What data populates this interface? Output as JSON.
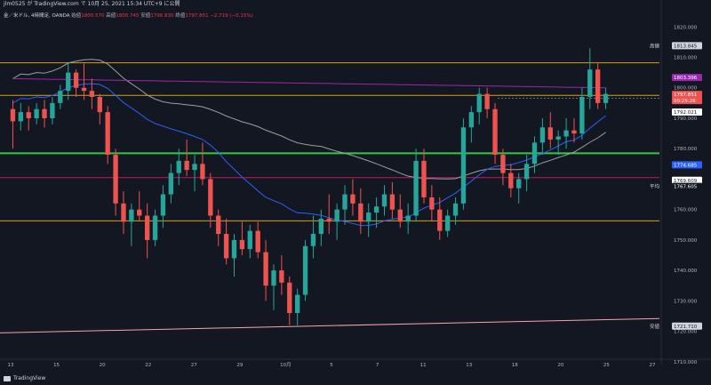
{
  "header": {
    "title": "jlm0525 が TradingView.com で 10月 25, 2021 15:34 UTC+9 に公開"
  },
  "infobar": {
    "symbol": "金／米ドル, 4時間足, OANDA",
    "open_label": "始値",
    "open_value": "1800.570",
    "high_label": "高値",
    "high_value": "1800.745",
    "low_label": "安値",
    "low_value": "1796.830",
    "close_label": "終値",
    "close_value": "1797.851",
    "change": "−2.719 (−0.15%)"
  },
  "branding": {
    "logo_text": "TradingView"
  },
  "colors": {
    "background": "#131722",
    "up": "#26a69a",
    "down": "#ef5350",
    "green_level": "#2ecc40",
    "orange_level": "#d4a017",
    "purple_ma": "#9c27b0",
    "blue_ma": "#2962ff",
    "grey_ma": "#9e9e9e",
    "red_level": "#c2185b",
    "pink_trend": "#f8a5a5"
  },
  "chart_data": {
    "type": "candlestick",
    "x_tick_labels": [
      "13",
      "15",
      "20",
      "22",
      "27",
      "29",
      "10月",
      "5",
      "7",
      "11",
      "13",
      "18",
      "20",
      "25",
      "27"
    ],
    "y_tick_labels": [
      "1820.000",
      "1810.000",
      "1800.000",
      "1790.000",
      "1780.000",
      "1770.000",
      "1760.000",
      "1750.000",
      "1740.000",
      "1730.000",
      "1720.000",
      "1710.000"
    ],
    "ylim": [
      1712,
      1823
    ],
    "price_tags": [
      {
        "label": "高値",
        "value": "1813.845",
        "color": "#131722",
        "bg": "#d1d4dc"
      },
      {
        "label": "",
        "value": "1803.396",
        "color": "#ffffff",
        "bg": "#9c27b0"
      },
      {
        "label": "",
        "value": "1797.851",
        "color": "#ffffff",
        "bg": "#ef5350"
      },
      {
        "label": "",
        "value": "00:25:26",
        "color": "#ffffff",
        "bg": "#ef5350"
      },
      {
        "label": "",
        "value": "1792.021",
        "color": "#131722",
        "bg": "#ffffff"
      },
      {
        "label": "",
        "value": "1774.685",
        "color": "#ffffff",
        "bg": "#2962ff"
      },
      {
        "label": "",
        "value": "1769.609",
        "color": "#131722",
        "bg": "#ffffff"
      },
      {
        "label": "平均",
        "value": "1767.605",
        "color": "#ffffff",
        "bg": "#131722"
      },
      {
        "label": "安値",
        "value": "1721.710",
        "color": "#131722",
        "bg": "#d1d4dc"
      }
    ],
    "levels": [
      {
        "name": "orange-top",
        "price": 1808.2,
        "color": "#d4a017"
      },
      {
        "name": "orange-mid",
        "price": 1797.5,
        "color": "#d4a017"
      },
      {
        "name": "green-support",
        "price": 1778.5,
        "color": "#2ecc40"
      },
      {
        "name": "red-level",
        "price": 1770.5,
        "color": "#c2185b"
      },
      {
        "name": "orange-bottom",
        "price": 1756.3,
        "color": "#d4a017"
      }
    ],
    "candles": [
      [
        1793,
        1796,
        1780,
        1789
      ],
      [
        1789,
        1795,
        1786,
        1792
      ],
      [
        1792,
        1794,
        1786,
        1790
      ],
      [
        1790,
        1795,
        1788,
        1793
      ],
      [
        1793,
        1796,
        1787,
        1790
      ],
      [
        1790,
        1797,
        1788,
        1795
      ],
      [
        1795,
        1801,
        1793,
        1799
      ],
      [
        1799,
        1808,
        1796,
        1805
      ],
      [
        1805,
        1806,
        1797,
        1800
      ],
      [
        1800,
        1808,
        1796,
        1799
      ],
      [
        1799,
        1803,
        1793,
        1797
      ],
      [
        1797,
        1798,
        1788,
        1792
      ],
      [
        1792,
        1794,
        1775,
        1778
      ],
      [
        1778,
        1780,
        1758,
        1762
      ],
      [
        1762,
        1766,
        1752,
        1756
      ],
      [
        1756,
        1762,
        1748,
        1760
      ],
      [
        1760,
        1766,
        1756,
        1758
      ],
      [
        1758,
        1762,
        1744,
        1750
      ],
      [
        1750,
        1760,
        1748,
        1758
      ],
      [
        1758,
        1768,
        1754,
        1765
      ],
      [
        1765,
        1775,
        1762,
        1772
      ],
      [
        1772,
        1780,
        1768,
        1776
      ],
      [
        1776,
        1783,
        1771,
        1773
      ],
      [
        1773,
        1778,
        1766,
        1775
      ],
      [
        1775,
        1782,
        1768,
        1770
      ],
      [
        1770,
        1772,
        1754,
        1758
      ],
      [
        1758,
        1760,
        1748,
        1752
      ],
      [
        1752,
        1757,
        1742,
        1744
      ],
      [
        1744,
        1752,
        1738,
        1750
      ],
      [
        1750,
        1756,
        1745,
        1747
      ],
      [
        1747,
        1755,
        1744,
        1753
      ],
      [
        1753,
        1756,
        1744,
        1746
      ],
      [
        1746,
        1750,
        1730,
        1735
      ],
      [
        1735,
        1742,
        1727,
        1740
      ],
      [
        1740,
        1745,
        1732,
        1736
      ],
      [
        1736,
        1738,
        1722,
        1726
      ],
      [
        1726,
        1734,
        1722,
        1732
      ],
      [
        1732,
        1750,
        1730,
        1748
      ],
      [
        1748,
        1758,
        1744,
        1752
      ],
      [
        1752,
        1760,
        1748,
        1757
      ],
      [
        1757,
        1765,
        1752,
        1756
      ],
      [
        1756,
        1762,
        1750,
        1760
      ],
      [
        1760,
        1768,
        1755,
        1765
      ],
      [
        1765,
        1770,
        1758,
        1762
      ],
      [
        1762,
        1767,
        1752,
        1756
      ],
      [
        1756,
        1762,
        1751,
        1759
      ],
      [
        1759,
        1764,
        1754,
        1761
      ],
      [
        1761,
        1768,
        1758,
        1765
      ],
      [
        1765,
        1769,
        1757,
        1760
      ],
      [
        1760,
        1765,
        1754,
        1756
      ],
      [
        1756,
        1762,
        1752,
        1758
      ],
      [
        1758,
        1780,
        1756,
        1776
      ],
      [
        1776,
        1780,
        1762,
        1764
      ],
      [
        1764,
        1768,
        1756,
        1760
      ],
      [
        1760,
        1764,
        1750,
        1753
      ],
      [
        1753,
        1760,
        1751,
        1758
      ],
      [
        1758,
        1764,
        1755,
        1762
      ],
      [
        1762,
        1790,
        1760,
        1787
      ],
      [
        1787,
        1794,
        1782,
        1792
      ],
      [
        1792,
        1800,
        1788,
        1798
      ],
      [
        1798,
        1800,
        1790,
        1793
      ],
      [
        1793,
        1795,
        1775,
        1778
      ],
      [
        1778,
        1780,
        1768,
        1772
      ],
      [
        1772,
        1775,
        1764,
        1767
      ],
      [
        1767,
        1772,
        1762,
        1770
      ],
      [
        1770,
        1778,
        1766,
        1775
      ],
      [
        1775,
        1784,
        1772,
        1782
      ],
      [
        1782,
        1790,
        1778,
        1787
      ],
      [
        1787,
        1792,
        1780,
        1783
      ],
      [
        1783,
        1786,
        1778,
        1784
      ],
      [
        1784,
        1790,
        1780,
        1786
      ],
      [
        1786,
        1790,
        1782,
        1785
      ],
      [
        1785,
        1800,
        1783,
        1797
      ],
      [
        1797,
        1813,
        1793,
        1806
      ],
      [
        1806,
        1808,
        1793,
        1795
      ],
      [
        1795,
        1800,
        1793,
        1798
      ]
    ],
    "x_axis_label_text": "",
    "y_axis_label_text": ""
  }
}
